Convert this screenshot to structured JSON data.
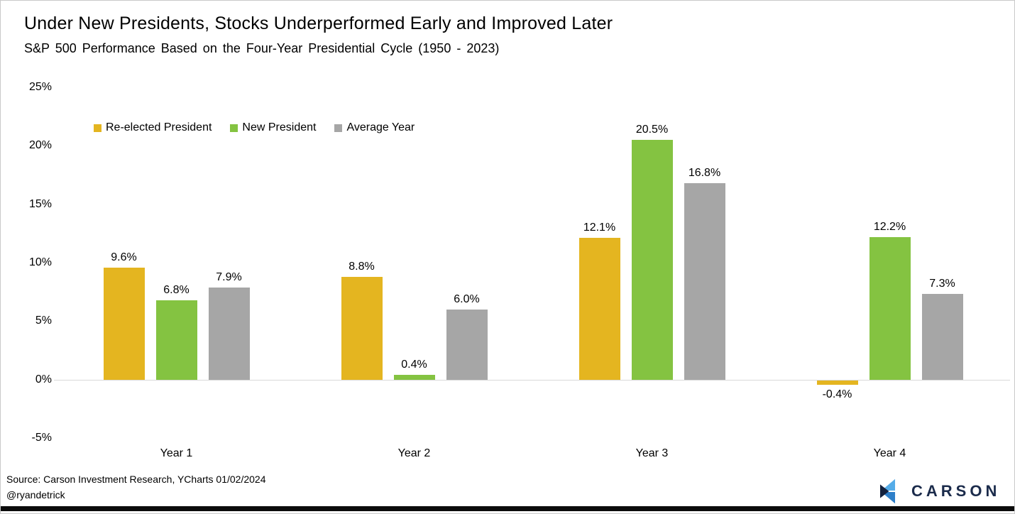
{
  "header": {
    "title": "Under New Presidents, Stocks Underperformed Early and Improved Later",
    "subtitle": "S&P 500 Performance Based on the Four-Year Presidential Cycle (1950 - 2023)"
  },
  "chart_data": {
    "type": "bar",
    "categories": [
      "Year 1",
      "Year 2",
      "Year 3",
      "Year 4"
    ],
    "series": [
      {
        "name": "Re-elected President",
        "color": "#e4b520",
        "values": [
          9.6,
          8.8,
          12.1,
          -0.4
        ],
        "labels": [
          "9.6%",
          "8.8%",
          "12.1%",
          "-0.4%"
        ]
      },
      {
        "name": "New President",
        "color": "#84c341",
        "values": [
          6.8,
          0.4,
          20.5,
          12.2
        ],
        "labels": [
          "6.8%",
          "0.4%",
          "20.5%",
          "12.2%"
        ]
      },
      {
        "name": "Average Year",
        "color": "#a6a6a6",
        "values": [
          7.9,
          6.0,
          16.8,
          7.3
        ],
        "labels": [
          "7.9%",
          "6.0%",
          "16.8%",
          "7.3%"
        ]
      }
    ],
    "y_ticks": [
      {
        "value": 25,
        "label": "25%"
      },
      {
        "value": 20,
        "label": "20%"
      },
      {
        "value": 15,
        "label": "15%"
      },
      {
        "value": 10,
        "label": "10%"
      },
      {
        "value": 5,
        "label": "5%"
      },
      {
        "value": 0,
        "label": "0%"
      },
      {
        "value": -5,
        "label": "-5%"
      }
    ],
    "ylim": [
      -5,
      25
    ],
    "grid": false,
    "legend_position": "top-left"
  },
  "footer": {
    "source": "Source: Carson Investment Research, YCharts 01/02/2024",
    "handle": "@ryandetrick"
  },
  "logo": {
    "text": "CARSON",
    "navy": "#1b2b4b",
    "dark_triangle": "#14213d",
    "light_blue": "#55ace8",
    "mid_blue": "#2e7fc9"
  }
}
